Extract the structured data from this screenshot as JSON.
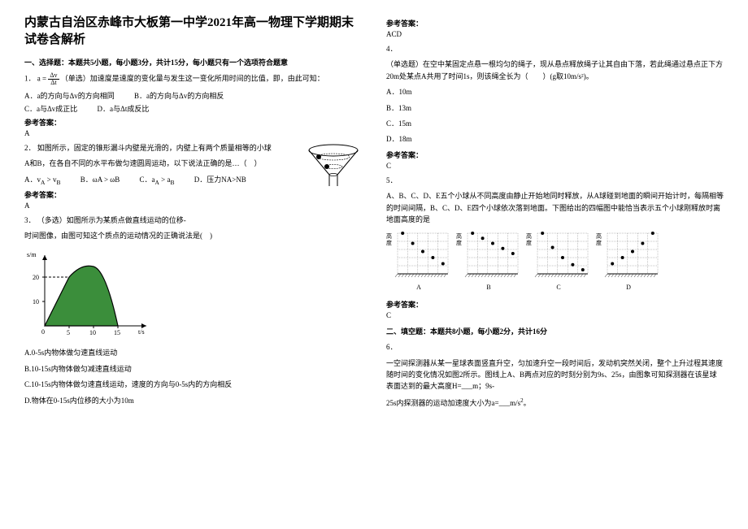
{
  "title": "内蒙古自治区赤峰市大板第一中学2021年高一物理下学期期末试卷含解析",
  "section1_header": "一、选择题：本题共5小题，每小题3分，共计15分，每小题只有一个选项符合题意",
  "q1": {
    "num": "1．",
    "formula_num": "Δv",
    "formula_den": "Δt",
    "text_after": "（单选）加速度是速度的变化量与发生这一变化所用时间的比值，即，由此可知：",
    "optA": "A．a的方向与Δv的方向相同",
    "optB": "B．a的方向与Δv的方向相反",
    "optC": "C．a与Δv成正比",
    "optD": "D．a与Δt成反比",
    "ans_label": "参考答案：",
    "ans": "A"
  },
  "q2": {
    "num": "2．",
    "text": "如图所示，固定的锥形漏斗内壁是光滑的，内壁上有两个质量相等的小球",
    "text2": "A和B，在各自不同的水平布做匀速圆周运动，以下说法正确的是…（　）",
    "optA": "A．vA > vB",
    "optB": "B．ωA > ωB",
    "optC": "C．aA > aB",
    "optD": "D．压力NA>NB",
    "ans_label": "参考答案：",
    "ans": "A"
  },
  "q3": {
    "num": "3．",
    "text": "（多选）如图所示为某质点做直线运动的位移-",
    "text2": "时间图像，由图可知这个质点的运动情况的正确说法是(　)",
    "chart": {
      "ylabel": "s/m",
      "xlabel": "t/s",
      "ymax": 20,
      "yticks": [
        10,
        20
      ],
      "xticks": [
        5,
        10,
        15
      ],
      "peak_x": 7.5,
      "peak_y": 25,
      "bg": "#3b8e3b",
      "stroke": "#000000",
      "dash": "#000000"
    },
    "optA": "A.0-5s内物体做匀速直线运动",
    "optB": "B.10-15s内物体做匀减速直线运动",
    "optC": "C.10-15s内物体做匀速直线运动，速度的方向与0-5s内的方向相反",
    "optD": "D.物体在0-15s内位移的大小为10m",
    "ans_label": "参考答案：",
    "ans": "ACD"
  },
  "q4": {
    "num": "4．",
    "text": "（单选题）在空中某固定点悬一根均匀的绳子，现从悬点释放绳子让其自由下落，若此绳通过悬点正下方20m处某点A共用了时间1s，则该绳全长为（　　）(g取10m/s²)。",
    "optA": "A．10m",
    "optB": "B．13m",
    "optC": "C．15m",
    "optD": "D．18m",
    "ans_label": "参考答案：",
    "ans": "C"
  },
  "q5": {
    "num": "5．",
    "text": "A、B、C、D、E五个小球从不同高度由静止开始地同时释放，从A球碰到地面的瞬间开始计时，每隔相等的时间间隔，B、C、D、E四个小球依次落到地面。下图给出的四幅图中能恰当表示五个小球刚释放时离地面高度的是",
    "charts": {
      "labels": [
        "A",
        "B",
        "C",
        "D"
      ],
      "ylabel": "高度",
      "grid_color": "#888888",
      "dot_color": "#000000",
      "bg": "#ffffff",
      "ground_hatch": "#555555",
      "patterns": {
        "A": [
          4,
          3,
          2.2,
          1.6,
          1
        ],
        "B": [
          4,
          3.5,
          3,
          2.5,
          2
        ],
        "C": [
          4,
          2.6,
          1.6,
          0.9,
          0.4
        ],
        "D": [
          1,
          1.6,
          2.2,
          3,
          4
        ]
      }
    },
    "ans_label": "参考答案：",
    "ans": "C"
  },
  "section2_header": "二、填空题：本题共8小题，每小题2分，共计16分",
  "q6": {
    "num": "6．",
    "text": "一空间探测器从某一星球表面竖直升空，匀加速升空一段时间后，发动机突然关闭，整个上升过程其速度随时间的变化情况如图2所示。图线上A、B两点对应的时刻分别为9s、25s，由图象可知探测器在该星球表面达到的最大高度H=___m；9s-",
    "text2": "25s内探测器的运动加速度大小为a=___m/s²。"
  }
}
